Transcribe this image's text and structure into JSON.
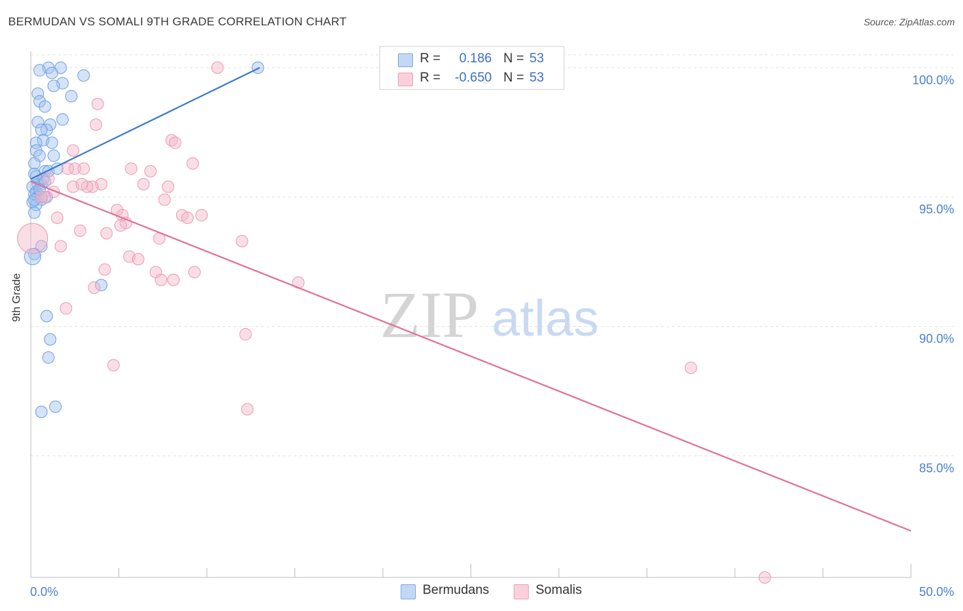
{
  "header": {
    "title": "BERMUDAN VS SOMALI 9TH GRADE CORRELATION CHART",
    "source": "Source: ZipAtlas.com"
  },
  "watermark": {
    "zip": "ZIP",
    "atlas": "atlas"
  },
  "legend": {
    "rows": [
      {
        "r_label": "R =",
        "r_value": "0.186",
        "n_label": "N =",
        "n_value": "53",
        "color": "#9fc0ef"
      },
      {
        "r_label": "R =",
        "r_value": "-0.650",
        "n_label": "N =",
        "n_value": "53",
        "color": "#f5b5c8"
      }
    ]
  },
  "bottom_legend": {
    "items": [
      {
        "label": "Bermudans",
        "color": "#9fc0ef"
      },
      {
        "label": "Somalis",
        "color": "#f5b5c8"
      }
    ]
  },
  "chart_data": {
    "type": "scatter",
    "title": "BERMUDAN VS SOMALI 9TH GRADE CORRELATION CHART",
    "xlabel": "",
    "ylabel": "9th Grade",
    "xlim": [
      0,
      50
    ],
    "ylim": [
      80.3,
      100.5
    ],
    "x_tick_labels": [
      "0.0%",
      "50.0%"
    ],
    "y_ticks": [
      85,
      90,
      95,
      100
    ],
    "y_tick_labels": [
      "85.0%",
      "90.0%",
      "95.0%",
      "100.0%"
    ],
    "grid": true,
    "colors": {
      "bermudans": "#4a86d8",
      "somalis": "#e27aa0"
    },
    "series": [
      {
        "name": "Bermudans",
        "trend": [
          [
            0,
            95.7
          ],
          [
            13.0,
            100.0
          ]
        ],
        "points": [
          [
            1.0,
            100.0
          ],
          [
            1.7,
            100.0
          ],
          [
            12.9,
            100.0
          ],
          [
            0.5,
            99.9
          ],
          [
            1.2,
            99.8
          ],
          [
            3.0,
            99.7
          ],
          [
            1.8,
            99.4
          ],
          [
            1.3,
            99.3
          ],
          [
            0.4,
            99.0
          ],
          [
            2.3,
            98.9
          ],
          [
            0.5,
            98.7
          ],
          [
            0.8,
            98.5
          ],
          [
            1.8,
            98.0
          ],
          [
            0.4,
            97.9
          ],
          [
            1.1,
            97.8
          ],
          [
            0.9,
            97.6
          ],
          [
            0.6,
            97.6
          ],
          [
            0.7,
            97.2
          ],
          [
            0.3,
            97.1
          ],
          [
            1.2,
            97.1
          ],
          [
            0.3,
            96.8
          ],
          [
            0.5,
            96.6
          ],
          [
            1.3,
            96.6
          ],
          [
            0.2,
            96.3
          ],
          [
            0.8,
            96.0
          ],
          [
            1.0,
            96.0
          ],
          [
            0.2,
            95.9
          ],
          [
            0.7,
            95.7
          ],
          [
            0.4,
            95.5
          ],
          [
            0.1,
            95.4
          ],
          [
            0.6,
            95.5
          ],
          [
            0.3,
            95.2
          ],
          [
            0.2,
            95.1
          ],
          [
            0.4,
            95.0
          ],
          [
            0.6,
            94.9
          ],
          [
            0.1,
            94.8
          ],
          [
            0.3,
            94.7
          ],
          [
            0.2,
            94.4
          ],
          [
            0.6,
            93.1
          ],
          [
            0.2,
            92.8
          ],
          [
            0.1,
            92.7
          ],
          [
            4.0,
            91.6
          ],
          [
            0.9,
            90.4
          ],
          [
            1.1,
            89.5
          ],
          [
            1.0,
            88.8
          ],
          [
            1.4,
            86.9
          ],
          [
            0.6,
            86.7
          ],
          [
            0.3,
            95.8
          ],
          [
            0.8,
            95.6
          ],
          [
            0.5,
            95.3
          ],
          [
            0.9,
            95.0
          ],
          [
            0.2,
            94.9
          ],
          [
            1.5,
            96.1
          ]
        ]
      },
      {
        "name": "Somalis",
        "trend": [
          [
            0,
            95.6
          ],
          [
            50,
            82.1
          ]
        ],
        "points": [
          [
            10.6,
            100.0
          ],
          [
            3.8,
            98.6
          ],
          [
            3.7,
            97.8
          ],
          [
            8.0,
            97.2
          ],
          [
            8.2,
            97.1
          ],
          [
            2.4,
            96.8
          ],
          [
            9.2,
            96.3
          ],
          [
            5.7,
            96.1
          ],
          [
            3.0,
            96.1
          ],
          [
            2.5,
            96.1
          ],
          [
            2.1,
            96.1
          ],
          [
            6.4,
            95.5
          ],
          [
            4.0,
            95.5
          ],
          [
            7.8,
            95.4
          ],
          [
            2.4,
            95.4
          ],
          [
            3.5,
            95.4
          ],
          [
            3.2,
            95.4
          ],
          [
            1.3,
            95.2
          ],
          [
            0.8,
            95.0
          ],
          [
            7.6,
            94.9
          ],
          [
            4.9,
            94.5
          ],
          [
            5.2,
            94.3
          ],
          [
            8.6,
            94.3
          ],
          [
            9.7,
            94.3
          ],
          [
            1.5,
            94.2
          ],
          [
            8.9,
            94.2
          ],
          [
            5.4,
            94.0
          ],
          [
            5.1,
            93.9
          ],
          [
            2.8,
            93.7
          ],
          [
            4.3,
            93.6
          ],
          [
            7.3,
            93.4
          ],
          [
            12.0,
            93.3
          ],
          [
            1.7,
            93.1
          ],
          [
            5.6,
            92.7
          ],
          [
            6.1,
            92.6
          ],
          [
            4.2,
            92.2
          ],
          [
            7.1,
            92.1
          ],
          [
            9.3,
            92.1
          ],
          [
            7.4,
            91.8
          ],
          [
            8.1,
            91.8
          ],
          [
            15.2,
            91.7
          ],
          [
            3.6,
            91.5
          ],
          [
            2.0,
            90.7
          ],
          [
            12.2,
            89.7
          ],
          [
            4.7,
            88.5
          ],
          [
            37.5,
            88.4
          ],
          [
            12.3,
            86.8
          ],
          [
            41.7,
            80.3
          ],
          [
            0.1,
            93.4
          ],
          [
            1.0,
            95.7
          ],
          [
            0.6,
            95.0
          ],
          [
            6.8,
            96.0
          ],
          [
            2.9,
            95.5
          ]
        ]
      }
    ]
  }
}
